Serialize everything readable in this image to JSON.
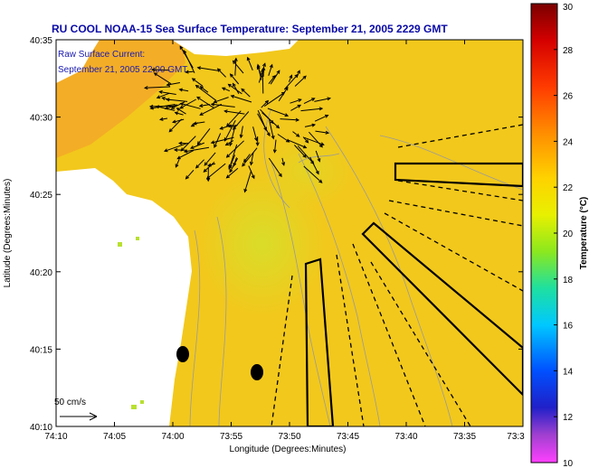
{
  "title": "RU COOL  NOAA-15  Sea Surface Temperature:  September 21, 2005 2229 GMT",
  "overlay": {
    "line1": "Raw Surface Current:",
    "line2": "September 21, 2005 22:00 GMT"
  },
  "scale_label": "50 cm/s",
  "axes": {
    "xlabel": "Longitude (Degrees:Minutes)",
    "ylabel": "Latitude (Degrees:Minutes)",
    "xticks": [
      "74:10",
      "74:05",
      "74:00",
      "73:55",
      "73:50",
      "73:45",
      "73:40",
      "73:35",
      "73:3"
    ],
    "yticks": [
      "40:35",
      "40:30",
      "40:25",
      "40:20",
      "40:15",
      "40:10"
    ]
  },
  "colorbar": {
    "label": "Temperature (°C)",
    "ticks": [
      "30",
      "28",
      "26",
      "24",
      "22",
      "20",
      "18",
      "16",
      "14",
      "12",
      "10"
    ],
    "min": 10,
    "max": 30
  },
  "colors": {
    "title": "#0a0aa8",
    "ocean": "#f2c81c",
    "land": "#ffffff",
    "warm_coastal": "#f5a025"
  }
}
